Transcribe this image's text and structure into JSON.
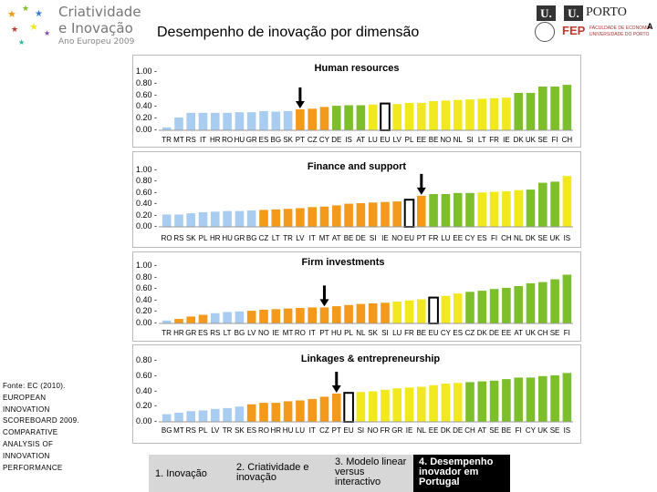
{
  "header": {
    "logo_left": {
      "line1": "Criatividade",
      "line2": "e Inovação",
      "line3": "Ano Europeu 2009"
    },
    "title": "Desempenho de inovação por dimensão",
    "logo_right": {
      "u": "U.",
      "porto_u": "U.",
      "porto": "PORTO",
      "fep": "FEP",
      "faculdade_line1": "FACULDADE DE ECONOMIA",
      "faculdade_line2": "UNIVERSIDADE DO PORTO",
      "cropped_a": "A"
    }
  },
  "source_note": "Fonte: EC (2010). EUROPEAN INNOVATION SCOREBOARD 2009. COMPARATIVE ANALYSIS OF INNOVATION PERFORMANCE",
  "footer_steps": [
    {
      "label": "1. Inovação",
      "active": false
    },
    {
      "label": "2. Criatividade e inovação",
      "active": false
    },
    {
      "label": "3. Modelo linear versus interactivo",
      "active": false
    },
    {
      "label": "4. Desempenho inovador em Portugal",
      "active": true
    }
  ],
  "colors": {
    "light_blue": "#a9cdf1",
    "orange": "#f39a1d",
    "green": "#7cbf2b",
    "yellow": "#f2e81e",
    "dark": "#000000"
  },
  "chart_data": [
    {
      "type": "bar",
      "title": "Human resources",
      "ylim": [
        0,
        1
      ],
      "yticks": [
        "1.00",
        "0.80",
        "0.60",
        "0.40",
        "0.20",
        "0.00"
      ],
      "categories": [
        "TR",
        "MT",
        "RS",
        "IT",
        "HR",
        "RO",
        "HU",
        "GR",
        "ES",
        "BG",
        "SK",
        "PT",
        "CZ",
        "CY",
        "DE",
        "IS",
        "AT",
        "LU",
        "EU",
        "LV",
        "PL",
        "EE",
        "BE",
        "NO",
        "NL",
        "SI",
        "LT",
        "FR",
        "IE",
        "DK",
        "UK",
        "SE",
        "FI",
        "CH"
      ],
      "values": [
        0.05,
        0.22,
        0.3,
        0.3,
        0.3,
        0.3,
        0.31,
        0.31,
        0.33,
        0.32,
        0.33,
        0.36,
        0.37,
        0.4,
        0.42,
        0.43,
        0.43,
        0.44,
        0.46,
        0.45,
        0.47,
        0.47,
        0.5,
        0.51,
        0.52,
        0.53,
        0.54,
        0.55,
        0.56,
        0.64,
        0.64,
        0.75,
        0.75,
        0.78
      ],
      "groups": [
        "b",
        "b",
        "b",
        "b",
        "b",
        "b",
        "b",
        "b",
        "b",
        "b",
        "b",
        "o",
        "o",
        "o",
        "g",
        "g",
        "g",
        "y",
        "e",
        "y",
        "y",
        "y",
        "y",
        "y",
        "y",
        "y",
        "y",
        "y",
        "y",
        "g",
        "g",
        "g",
        "g",
        "g"
      ],
      "arrow_at": "PT",
      "outlined": "EU"
    },
    {
      "type": "bar",
      "title": "Finance and support",
      "ylim": [
        0,
        1
      ],
      "yticks": [
        "1.00",
        "0.80",
        "0.60",
        "0.40",
        "0.20",
        "0.00"
      ],
      "categories": [
        "RO",
        "RS",
        "SK",
        "PL",
        "HR",
        "HU",
        "GR",
        "BG",
        "CZ",
        "LT",
        "TR",
        "LV",
        "IT",
        "MT",
        "AT",
        "BE",
        "DE",
        "SI",
        "IE",
        "NO",
        "EU",
        "PT",
        "FR",
        "LU",
        "EE",
        "CY",
        "ES",
        "FI",
        "CH",
        "NL",
        "DK",
        "SE",
        "UK",
        "IS"
      ],
      "values": [
        0.22,
        0.22,
        0.24,
        0.26,
        0.27,
        0.28,
        0.28,
        0.29,
        0.3,
        0.31,
        0.32,
        0.33,
        0.35,
        0.36,
        0.38,
        0.41,
        0.42,
        0.43,
        0.44,
        0.45,
        0.48,
        0.55,
        0.58,
        0.58,
        0.6,
        0.6,
        0.61,
        0.62,
        0.63,
        0.65,
        0.66,
        0.78,
        0.8,
        0.9
      ],
      "groups": [
        "b",
        "b",
        "b",
        "b",
        "b",
        "b",
        "b",
        "b",
        "o",
        "o",
        "o",
        "o",
        "o",
        "o",
        "o",
        "o",
        "o",
        "o",
        "o",
        "o",
        "e",
        "o",
        "g",
        "g",
        "g",
        "g",
        "y",
        "y",
        "y",
        "y",
        "g",
        "g",
        "g",
        "y"
      ],
      "arrow_at": "PT",
      "outlined": "EU"
    },
    {
      "type": "bar",
      "title": "Firm investments",
      "ylim": [
        0,
        1
      ],
      "yticks": [
        "1.00",
        "0.80",
        "0.60",
        "0.40",
        "0.20",
        "0.00"
      ],
      "categories": [
        "TR",
        "HR",
        "GR",
        "ES",
        "RS",
        "LT",
        "BG",
        "LV",
        "NO",
        "IE",
        "MT",
        "RO",
        "IT",
        "PT",
        "HU",
        "PL",
        "NL",
        "SK",
        "SI",
        "LU",
        "FR",
        "BE",
        "EU",
        "CY",
        "ES",
        "CZ",
        "DK",
        "DE",
        "EE",
        "AT",
        "UK",
        "CH",
        "SE",
        "FI"
      ],
      "values": [
        0.05,
        0.08,
        0.12,
        0.15,
        0.18,
        0.2,
        0.21,
        0.22,
        0.24,
        0.25,
        0.26,
        0.27,
        0.28,
        0.28,
        0.3,
        0.32,
        0.34,
        0.35,
        0.36,
        0.38,
        0.4,
        0.42,
        0.45,
        0.48,
        0.52,
        0.55,
        0.57,
        0.6,
        0.62,
        0.65,
        0.7,
        0.72,
        0.77,
        0.85
      ],
      "groups": [
        "b",
        "o",
        "o",
        "o",
        "b",
        "b",
        "b",
        "o",
        "o",
        "o",
        "o",
        "o",
        "o",
        "o",
        "o",
        "o",
        "o",
        "o",
        "o",
        "y",
        "y",
        "y",
        "e",
        "y",
        "y",
        "g",
        "g",
        "g",
        "g",
        "g",
        "g",
        "g",
        "g",
        "g"
      ],
      "arrow_at": "PT",
      "outlined": "EU"
    },
    {
      "type": "bar",
      "title": "Linkages & entrepreneurship",
      "ylim": [
        0,
        0.8
      ],
      "yticks": [
        "0.80",
        "0.60",
        "0.40",
        "0.20",
        "0.00"
      ],
      "categories": [
        "BG",
        "MT",
        "RS",
        "PL",
        "LV",
        "TR",
        "SK",
        "ES",
        "RO",
        "HR",
        "HU",
        "LU",
        "IT",
        "CZ",
        "PT",
        "EU",
        "SI",
        "NO",
        "FR",
        "GR",
        "IE",
        "NL",
        "EE",
        "DK",
        "DE",
        "CH",
        "AT",
        "SE",
        "BE",
        "FI",
        "CY",
        "UK",
        "SE",
        "IS"
      ],
      "values": [
        0.1,
        0.12,
        0.14,
        0.15,
        0.17,
        0.18,
        0.2,
        0.23,
        0.25,
        0.25,
        0.27,
        0.28,
        0.3,
        0.33,
        0.37,
        0.38,
        0.39,
        0.4,
        0.42,
        0.44,
        0.45,
        0.46,
        0.48,
        0.5,
        0.51,
        0.52,
        0.53,
        0.54,
        0.56,
        0.58,
        0.58,
        0.6,
        0.61,
        0.64
      ],
      "groups": [
        "b",
        "b",
        "b",
        "b",
        "b",
        "b",
        "b",
        "o",
        "o",
        "o",
        "o",
        "o",
        "o",
        "o",
        "o",
        "e",
        "y",
        "y",
        "y",
        "y",
        "y",
        "y",
        "y",
        "y",
        "y",
        "g",
        "g",
        "g",
        "g",
        "g",
        "g",
        "g",
        "g",
        "g"
      ],
      "arrow_at": "PT",
      "outlined": "EU"
    }
  ]
}
